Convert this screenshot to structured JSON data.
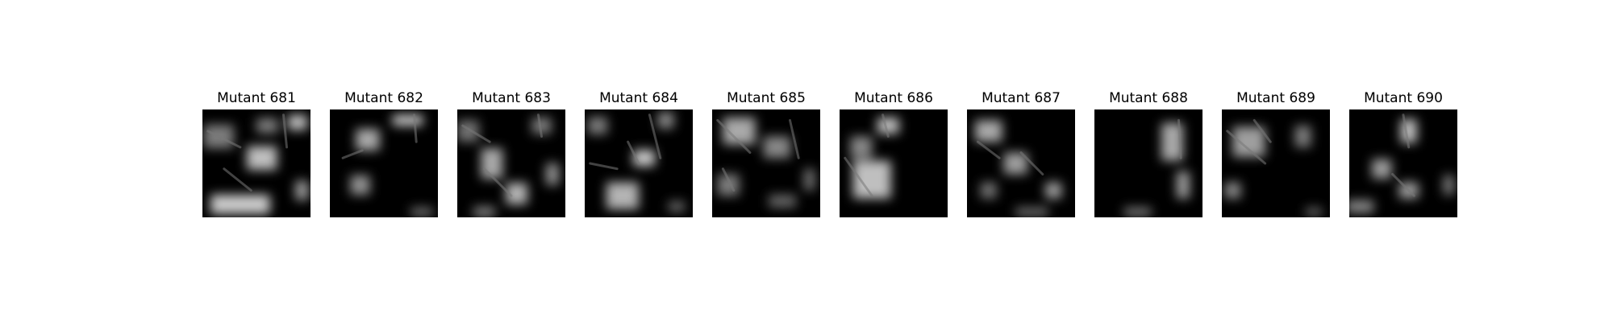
{
  "figure": {
    "panels": [
      {
        "title": "Mutant 681",
        "pattern": 0
      },
      {
        "title": "Mutant 682",
        "pattern": 1
      },
      {
        "title": "Mutant 683",
        "pattern": 2
      },
      {
        "title": "Mutant 684",
        "pattern": 3
      },
      {
        "title": "Mutant 685",
        "pattern": 4
      },
      {
        "title": "Mutant 686",
        "pattern": 5
      },
      {
        "title": "Mutant 687",
        "pattern": 6
      },
      {
        "title": "Mutant 688",
        "pattern": 7
      },
      {
        "title": "Mutant 689",
        "pattern": 8
      },
      {
        "title": "Mutant 690",
        "pattern": 9
      }
    ],
    "colors": {
      "background": "#ffffff",
      "image_dark": "#000000",
      "image_light": "#d8d8d8",
      "title_text": "#000000"
    }
  }
}
